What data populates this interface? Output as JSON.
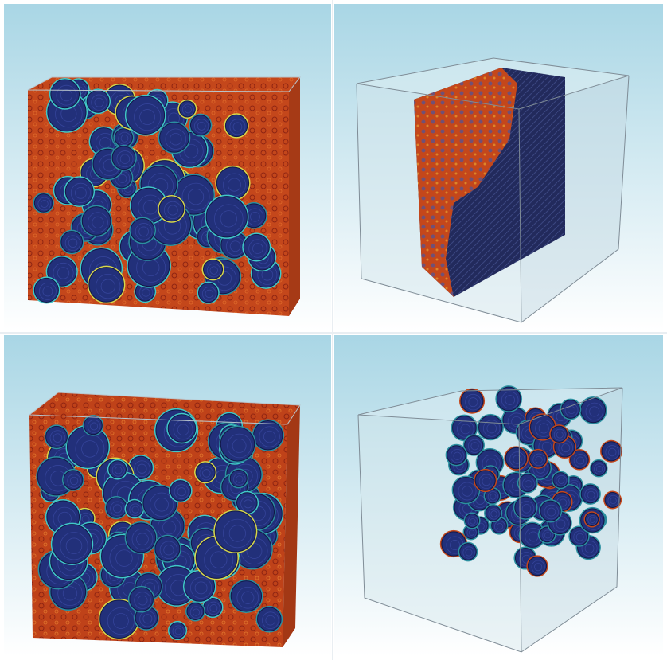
{
  "figure": {
    "panels": [
      {
        "id": "top-left",
        "description_name": "full-foam-volume"
      },
      {
        "id": "top-right",
        "description_name": "slab-cross-section"
      },
      {
        "id": "bottom-left",
        "description_name": "full-foam-volume-alt"
      },
      {
        "id": "bottom-right",
        "description_name": "isolated-cluster"
      }
    ],
    "colors": {
      "background_top": "#a9d6e5",
      "background_bottom": "#ffffff",
      "bubble_blue": "#23307c",
      "bubble_dark": "#141b4d",
      "matrix_orange": "#c4471b",
      "matrix_red": "#8e2412",
      "rim_cyan": "#40c8c8",
      "rim_yellow": "#d8d84a",
      "box_face": "#c8dbe2",
      "box_edge": "#7f8c96"
    }
  }
}
